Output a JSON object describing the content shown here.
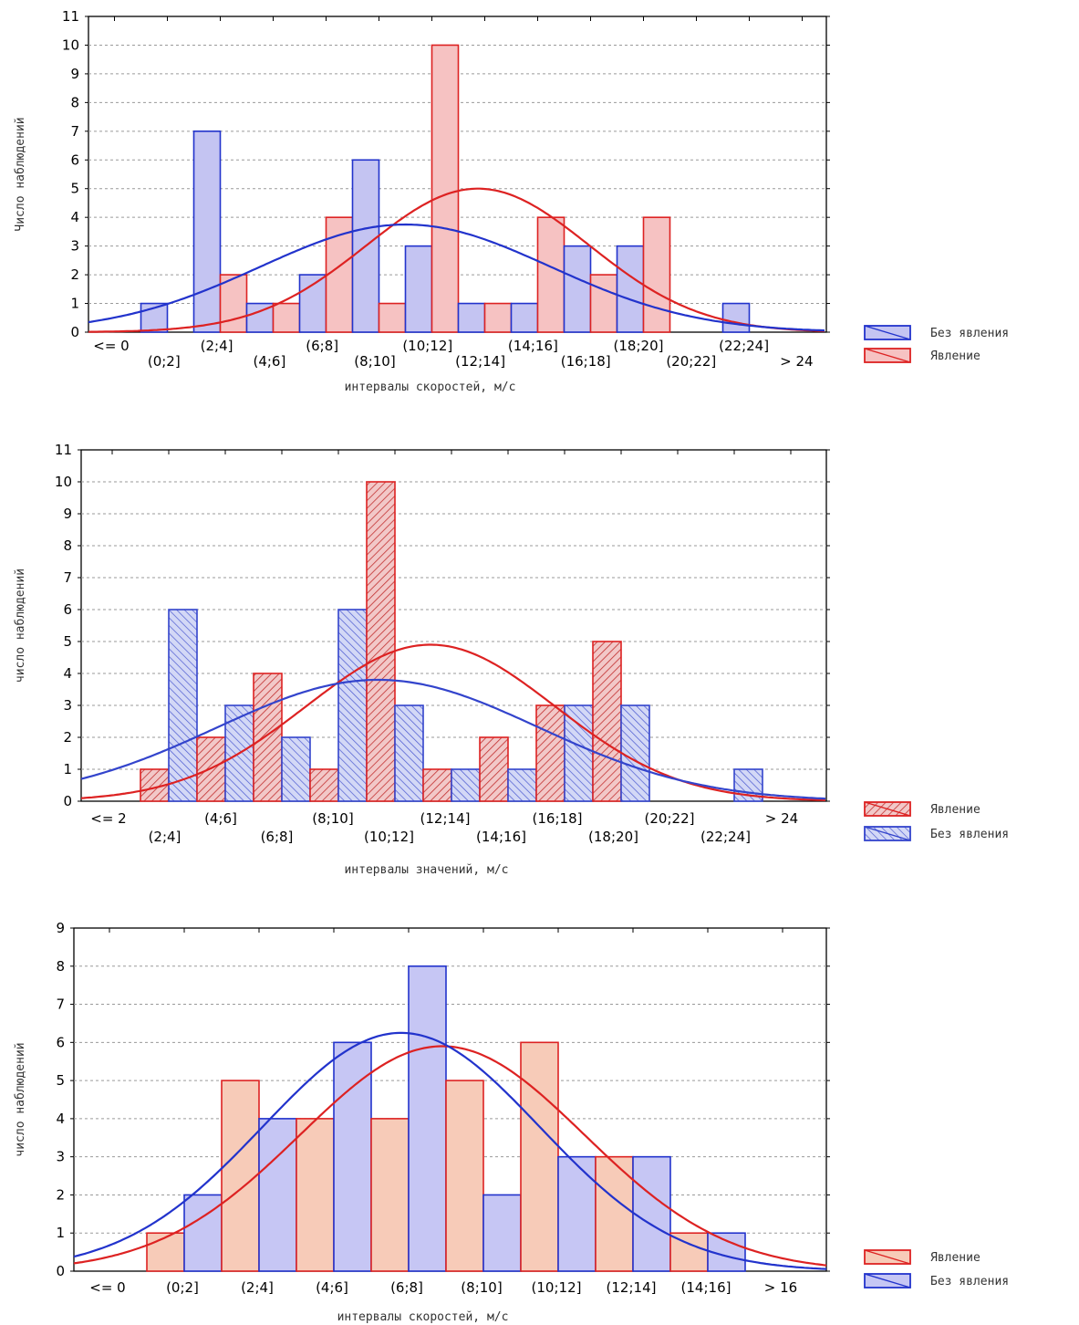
{
  "chart_data": [
    {
      "type": "bar",
      "ylabel": "Число наблюдений",
      "xlabel": "интервалы скоростей, м/с",
      "ylim": [
        0,
        11
      ],
      "categories": [
        "<= 0",
        "(0;2]",
        "(2;4]",
        "(4;6]",
        "(6;8]",
        "(8;10]",
        "(10;12]",
        "(12;14]",
        "(14;16]",
        "(16;18]",
        "(18;20]",
        "(20;22]",
        "(22;24]",
        "> 24"
      ],
      "legend_position": "right",
      "grid": true,
      "series": [
        {
          "name": "Без явления",
          "color": "#2233cc",
          "fill": "#c4c4f2",
          "values": [
            0,
            1,
            7,
            1,
            2,
            6,
            3,
            1,
            1,
            3,
            3,
            0,
            1,
            0
          ]
        },
        {
          "name": "Явление",
          "color": "#dd2222",
          "fill": "#f6c2c2",
          "values": [
            0,
            0,
            2,
            1,
            4,
            1,
            10,
            1,
            4,
            2,
            4,
            0,
            0,
            0
          ]
        }
      ]
    },
    {
      "type": "bar",
      "ylabel": "число наблюдений",
      "xlabel": "интервалы значений, м/с",
      "ylim": [
        0,
        11
      ],
      "categories": [
        "<= 2",
        "(2;4]",
        "(4;6]",
        "(6;8]",
        "(8;10]",
        "(10;12]",
        "(12;14]",
        "(14;16]",
        "(16;18]",
        "(18;20]",
        "(20;22]",
        "(22;24]",
        "> 24"
      ],
      "legend_position": "right",
      "grid": true,
      "series": [
        {
          "name": "Явление",
          "color": "#dd2222",
          "fill": "#f2c8c8",
          "hatched": true,
          "values": [
            1,
            2,
            4,
            1,
            10,
            1,
            2,
            3,
            5,
            0,
            0,
            0,
            0
          ]
        },
        {
          "name": "Без явления",
          "color": "#3344cc",
          "fill": "#cbd1f4",
          "hatched": true,
          "values": [
            6,
            3,
            2,
            6,
            3,
            1,
            1,
            3,
            3,
            0,
            1,
            0,
            0
          ]
        }
      ]
    },
    {
      "type": "bar",
      "ylabel": "число наблюдений",
      "xlabel": "интервалы скоростей, м/с",
      "ylim": [
        0,
        9
      ],
      "categories": [
        "<= 0",
        "(0;2]",
        "(2;4]",
        "(4;6]",
        "(6;8]",
        "(8;10]",
        "(10;12]",
        "(12;14]",
        "(14;16]",
        "> 16"
      ],
      "legend_position": "right",
      "grid": true,
      "series": [
        {
          "name": "Явление",
          "color": "#dd2222",
          "fill": "#f7cbb8",
          "values": [
            0,
            1,
            5,
            4,
            4,
            5,
            6,
            3,
            1,
            0
          ]
        },
        {
          "name": "Без явления",
          "color": "#2233cc",
          "fill": "#c6c6f4",
          "values": [
            0,
            2,
            4,
            6,
            8,
            2,
            3,
            3,
            1,
            0
          ]
        }
      ]
    }
  ]
}
